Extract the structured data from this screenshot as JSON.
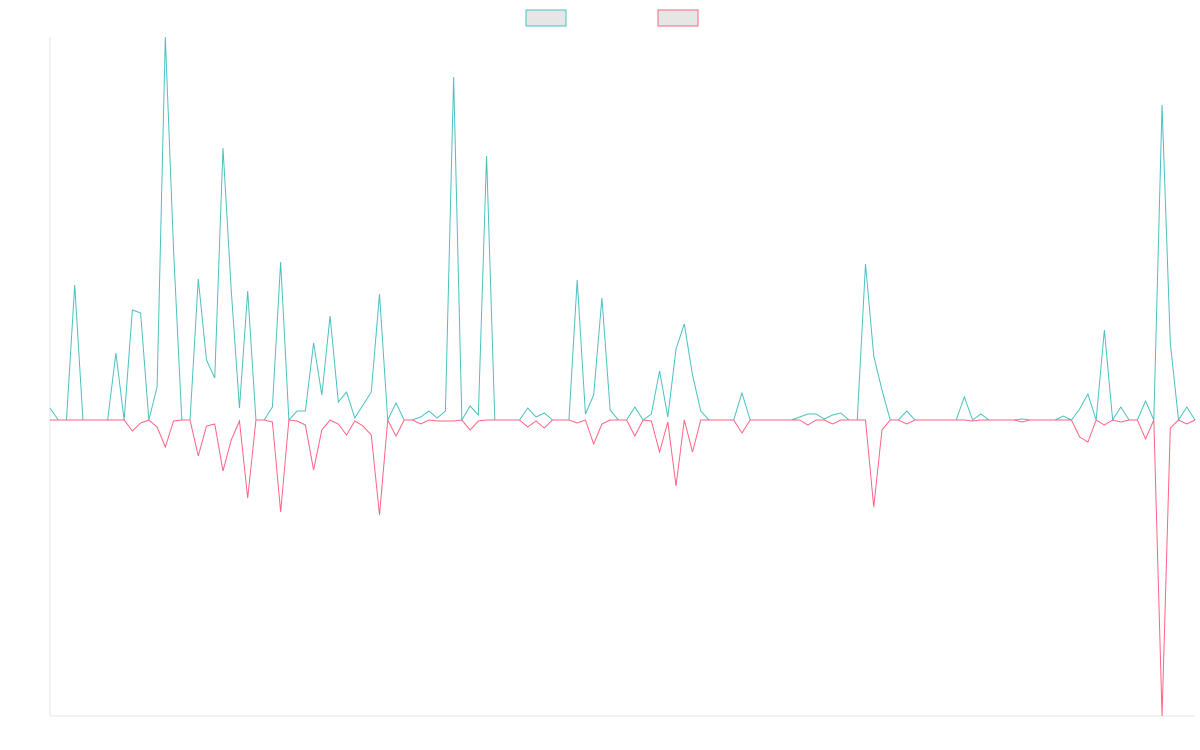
{
  "chart_data": {
    "type": "line",
    "legend": "top",
    "ylim": [
      -296,
      383
    ],
    "series": [
      {
        "color": "#4bc0c0",
        "values": [
          12,
          0,
          0,
          135,
          0,
          0,
          0,
          0,
          67,
          0,
          110,
          107,
          0,
          33,
          383,
          170,
          0,
          0,
          141,
          60,
          42,
          272,
          130,
          12,
          129,
          0,
          0,
          13,
          158,
          0,
          9,
          9,
          77,
          25,
          104,
          18,
          28,
          2,
          15,
          28,
          126,
          0,
          17,
          0,
          0,
          3,
          9,
          2,
          9,
          343,
          0,
          14,
          5,
          264,
          0,
          0,
          0,
          0,
          12,
          3,
          7,
          0,
          0,
          0,
          140,
          6,
          25,
          122,
          10,
          0,
          0,
          13,
          0,
          6,
          49,
          3,
          71,
          96,
          45,
          9,
          0,
          0,
          0,
          0,
          27,
          0,
          0,
          0,
          0,
          0,
          0,
          3,
          6,
          6,
          1,
          5,
          7,
          0,
          0,
          156,
          64,
          30,
          0,
          0,
          9,
          0,
          0,
          0,
          0,
          0,
          0,
          23,
          0,
          6,
          0,
          0,
          0,
          0,
          1,
          0,
          0,
          0,
          0,
          4,
          0,
          11,
          26,
          0,
          90,
          0,
          13,
          0,
          0,
          19,
          0,
          315,
          77,
          0,
          13,
          0
        ]
      },
      {
        "color": "#ff6384",
        "values": [
          0,
          0,
          0,
          0,
          0,
          0,
          0,
          0,
          0,
          0,
          -11,
          -3,
          0,
          -7,
          -27,
          -1,
          0,
          0,
          -36,
          -6,
          -4,
          -51,
          -20,
          -1,
          -78,
          0,
          0,
          -2,
          -92,
          0,
          -1,
          -5,
          -50,
          -10,
          0,
          -4,
          -15,
          -1,
          -6,
          -15,
          -95,
          0,
          -16,
          0,
          0,
          -4,
          0,
          -1,
          -1,
          -1,
          0,
          -10,
          -1,
          0,
          0,
          0,
          0,
          0,
          -7,
          -1,
          -8,
          0,
          0,
          0,
          -3,
          0,
          -24,
          -4,
          0,
          0,
          0,
          -16,
          0,
          -1,
          -32,
          -2,
          -66,
          0,
          -32,
          0,
          0,
          0,
          0,
          0,
          -13,
          0,
          0,
          0,
          0,
          0,
          0,
          0,
          -5,
          0,
          0,
          -4,
          0,
          0,
          0,
          0,
          -87,
          -10,
          0,
          0,
          -4,
          0,
          0,
          0,
          0,
          0,
          0,
          0,
          -1,
          0,
          0,
          0,
          0,
          0,
          -2,
          0,
          0,
          0,
          0,
          0,
          0,
          -17,
          -22,
          0,
          -5,
          0,
          -2,
          0,
          0,
          -19,
          0,
          -296,
          -8,
          0,
          -4,
          0
        ]
      }
    ]
  }
}
